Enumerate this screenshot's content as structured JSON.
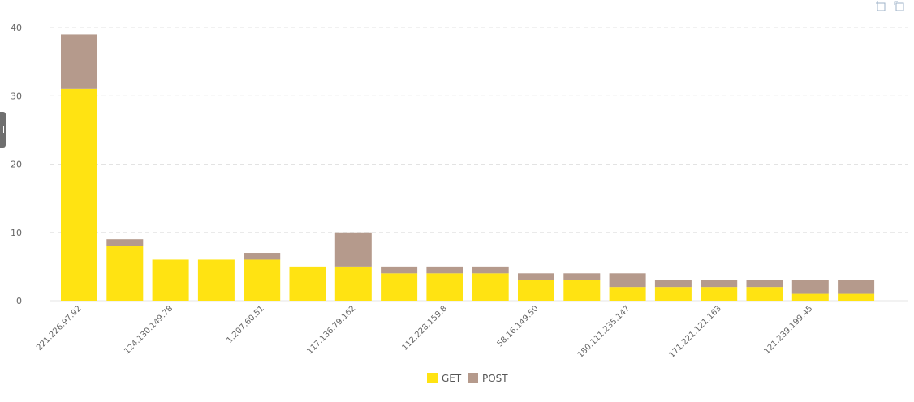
{
  "colors": {
    "get": "#FFE312",
    "post": "#B59A8C",
    "grid": "#e3e3e3",
    "axis_text": "#666666"
  },
  "icons": {
    "focus": "focus-mode-icon",
    "expand": "expand-icon",
    "handle": "panel-handle-icon"
  },
  "chart_data": {
    "type": "bar",
    "stacked": true,
    "title": "",
    "xlabel": "",
    "ylabel": "",
    "ylim": [
      0,
      40
    ],
    "yticks": [
      0,
      10,
      20,
      30,
      40
    ],
    "grid": true,
    "legend_position": "bottom-center",
    "categories": [
      "221.226.97.92",
      "",
      "124.130.149.78",
      "",
      "1.207.60.51",
      "",
      "117.136.79.162",
      "",
      "112.228.159.8",
      "",
      "58.16.149.50",
      "",
      "180.111.235.147",
      "",
      "171.221.121.163",
      "",
      "121.239.199.45",
      ""
    ],
    "series": [
      {
        "name": "GET",
        "values": [
          31,
          8,
          6,
          6,
          6,
          5,
          5,
          4,
          4,
          4,
          3,
          3,
          2,
          2,
          2,
          2,
          1,
          1
        ]
      },
      {
        "name": "POST",
        "values": [
          8,
          1,
          0,
          0,
          1,
          0,
          5,
          1,
          1,
          1,
          1,
          1,
          2,
          1,
          1,
          1,
          2,
          2
        ]
      }
    ]
  }
}
